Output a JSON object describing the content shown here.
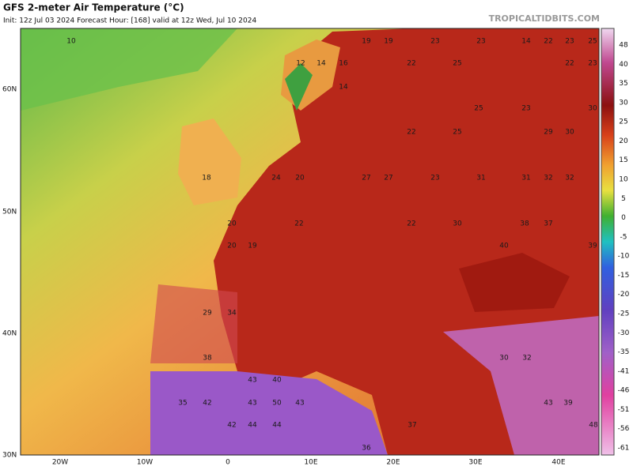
{
  "header": {
    "title": "GFS 2-meter Air Temperature (°C)",
    "init": "Init: 12z Jul 03 2024   Forecast Hour: [168]   valid at 12z Wed, Jul 10 2024",
    "source": "TROPICALTIDBITS.COM"
  },
  "axes": {
    "lat": [
      "60N",
      "50N",
      "40N",
      "30N"
    ],
    "lon": [
      "20W",
      "10W",
      "0",
      "10E",
      "20E",
      "30E",
      "40E"
    ]
  },
  "colorbar": {
    "ticks": [
      48,
      40,
      35,
      30,
      25,
      20,
      15,
      10,
      5,
      0,
      -5,
      -10,
      -15,
      -20,
      -25,
      -30,
      -35,
      -41,
      -46,
      -51,
      -56,
      -61
    ]
  },
  "map": {
    "labels": [
      10,
      12,
      14,
      16,
      19,
      19,
      23,
      23,
      14,
      22,
      23,
      25,
      22,
      25,
      22,
      23,
      14,
      25,
      23,
      30,
      22,
      25,
      29,
      30,
      18,
      24,
      20,
      27,
      27,
      23,
      31,
      31,
      32,
      32,
      20,
      22,
      22,
      30,
      38,
      37,
      20,
      19,
      40,
      39,
      29,
      34,
      38,
      35,
      42,
      43,
      40,
      43,
      50,
      43,
      42,
      44,
      44,
      48,
      36,
      37,
      43,
      39,
      30,
      32
    ]
  }
}
